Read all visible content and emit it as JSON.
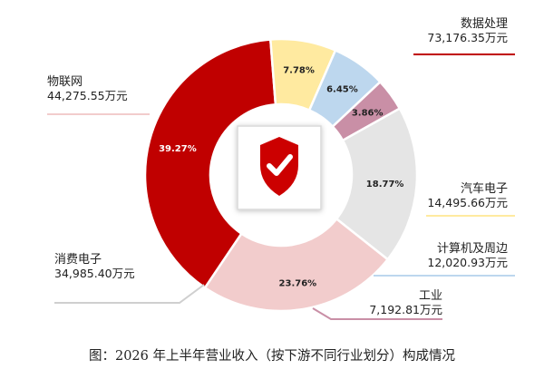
{
  "caption": "图：2026 年上半年营业收入（按下游不同行业划分）构成情况",
  "chart_data": {
    "type": "pie",
    "subtype": "donut",
    "title": "图：2026 年上半年营业收入（按下游不同行业划分）构成情况",
    "slices": [
      {
        "name": "数据处理",
        "value_label": "73,176.35万元",
        "value": 73176.35,
        "percent": 39.27,
        "percent_label": "39.27%",
        "color": "#c00000"
      },
      {
        "name": "汽车电子",
        "value_label": "14,495.66万元",
        "value": 14495.66,
        "percent": 7.78,
        "percent_label": "7.78%",
        "color": "#ffeaa0"
      },
      {
        "name": "计算机及周边",
        "value_label": "12,020.93万元",
        "value": 12020.93,
        "percent": 6.45,
        "percent_label": "6.45%",
        "color": "#bdd7ee"
      },
      {
        "name": "工业",
        "value_label": "7,192.81万元",
        "value": 7192.81,
        "percent": 3.86,
        "percent_label": "3.86%",
        "color": "#c98fa6"
      },
      {
        "name": "消费电子",
        "value_label": "34,985.40万元",
        "value": 34985.4,
        "percent": 18.77,
        "percent_label": "18.77%",
        "color": "#e5e5e5"
      },
      {
        "name": "物联网",
        "value_label": "44,275.55万元",
        "value": 44275.55,
        "percent": 23.76,
        "percent_label": "23.76%",
        "color": "#f2cccc"
      }
    ],
    "center_icon": "shield-check-icon",
    "legend": "none"
  }
}
